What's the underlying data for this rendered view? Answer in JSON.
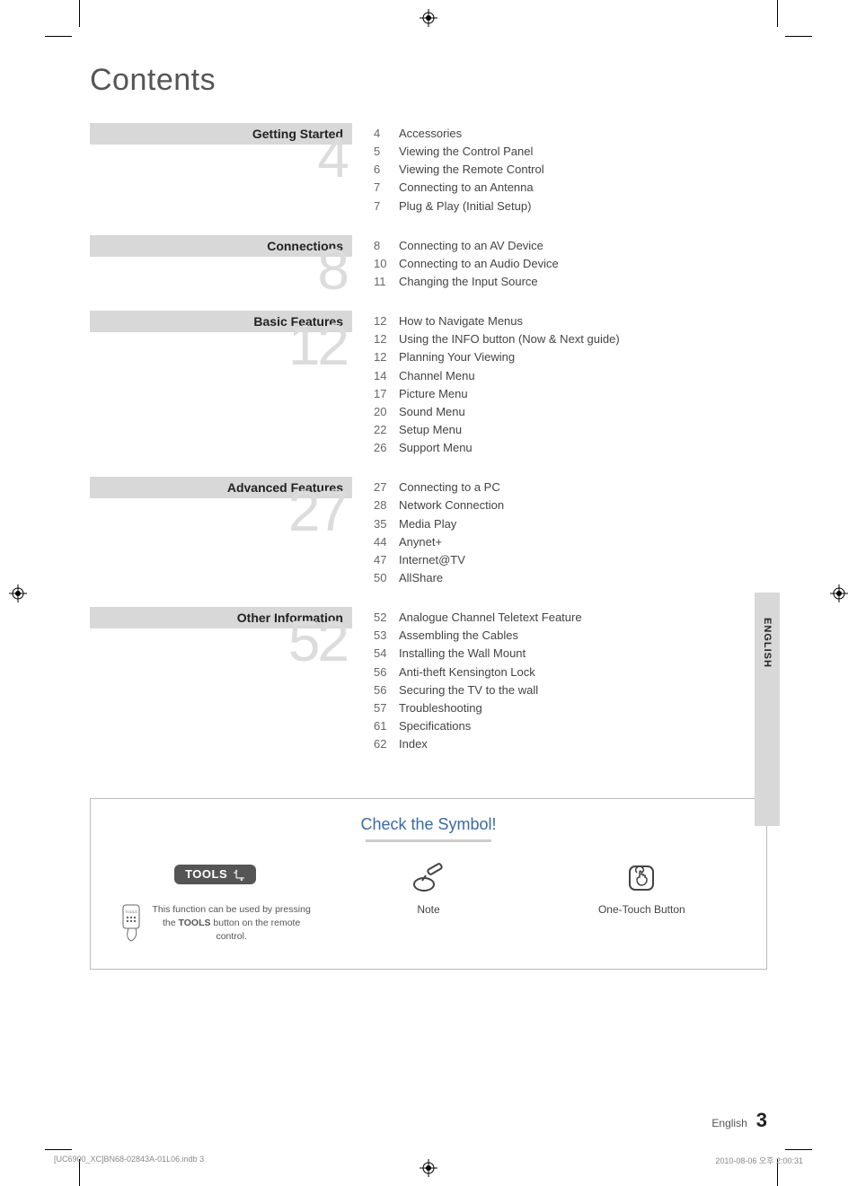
{
  "page": {
    "title": "Contents",
    "language_tab": "ENGLISH",
    "footer_lang": "English",
    "footer_page": "3"
  },
  "colors": {
    "section_bg": "#d8d8d8",
    "bignum": "#dcdcdc",
    "title_color": "#555555",
    "text": "#444444",
    "symbol_title": "#3a6aa5",
    "tools_badge_bg": "#555555",
    "border": "#bbbbbb",
    "background": "#ffffff"
  },
  "sections": [
    {
      "heading": "Getting Started",
      "big_number": "4",
      "items": [
        {
          "page": "4",
          "label": "Accessories"
        },
        {
          "page": "5",
          "label": "Viewing the Control Panel"
        },
        {
          "page": "6",
          "label": "Viewing the Remote Control"
        },
        {
          "page": "7",
          "label": "Connecting to an Antenna"
        },
        {
          "page": "7",
          "label": "Plug & Play (Initial Setup)"
        }
      ]
    },
    {
      "heading": "Connections",
      "big_number": "8",
      "items": [
        {
          "page": "8",
          "label": "Connecting to an AV Device"
        },
        {
          "page": "10",
          "label": "Connecting to an Audio Device"
        },
        {
          "page": "11",
          "label": "Changing the Input Source"
        }
      ]
    },
    {
      "heading": "Basic Features",
      "big_number": "12",
      "items": [
        {
          "page": "12",
          "label": "How to Navigate Menus"
        },
        {
          "page": "12",
          "label": "Using the INFO button (Now & Next guide)"
        },
        {
          "page": "12",
          "label": "Planning Your Viewing"
        },
        {
          "page": "14",
          "label": "Channel Menu"
        },
        {
          "page": "17",
          "label": "Picture Menu"
        },
        {
          "page": "20",
          "label": "Sound Menu"
        },
        {
          "page": "22",
          "label": "Setup Menu"
        },
        {
          "page": "26",
          "label": "Support Menu"
        }
      ]
    },
    {
      "heading": "Advanced Features",
      "big_number": "27",
      "items": [
        {
          "page": "27",
          "label": "Connecting to a PC"
        },
        {
          "page": "28",
          "label": "Network Connection"
        },
        {
          "page": "35",
          "label": "Media Play"
        },
        {
          "page": "44",
          "label": "Anynet+"
        },
        {
          "page": "47",
          "label": "Internet@TV"
        },
        {
          "page": "50",
          "label": "AllShare"
        }
      ]
    },
    {
      "heading": "Other Information",
      "big_number": "52",
      "items": [
        {
          "page": "52",
          "label": "Analogue Channel Teletext Feature"
        },
        {
          "page": "53",
          "label": "Assembling the Cables"
        },
        {
          "page": "54",
          "label": "Installing the Wall Mount"
        },
        {
          "page": "56",
          "label": "Anti-theft Kensington Lock"
        },
        {
          "page": "56",
          "label": "Securing the TV to the wall"
        },
        {
          "page": "57",
          "label": "Troubleshooting"
        },
        {
          "page": "61",
          "label": "Specifications"
        },
        {
          "page": "62",
          "label": "Index"
        }
      ]
    }
  ],
  "symbol_box": {
    "title": "Check the Symbol!",
    "tools_badge": "TOOLS",
    "tools_desc_1": "This function can be used by pressing the ",
    "tools_desc_bold": "TOOLS",
    "tools_desc_2": " button on the remote control.",
    "note_label": "Note",
    "onetouch_label": "One-Touch Button"
  },
  "print_footer": {
    "left": "[UC6900_XC]BN68-02843A-01L06.indb   3",
    "right": "2010-08-06   오후 2:00:31"
  }
}
